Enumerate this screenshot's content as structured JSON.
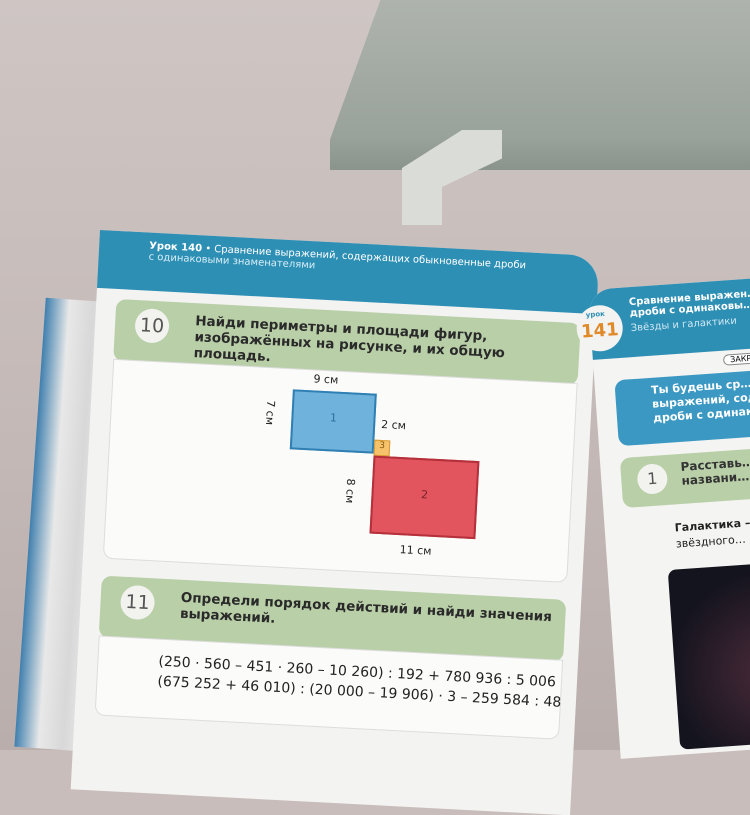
{
  "left_page": {
    "header": {
      "lesson": "Урок 140",
      "title": "• Сравнение выражений, содержащих обыкновенные дроби",
      "subtitle": "с одинаковыми знаменателями"
    },
    "exercise_10": {
      "number": "10",
      "text": "Найди периметры и площади фигур, изображённых на рисунке, и их общую площадь.",
      "figure": {
        "shape_1_label": "1",
        "shape_2_label": "2",
        "shape_3_label": "3",
        "width_1": "9 см",
        "height_1": "7 см",
        "side_3": "2 см",
        "height_2": "8 см",
        "width_2": "11 см",
        "colors": {
          "shape_1": "#6fb3dd",
          "shape_2": "#e2545e",
          "shape_3": "#f6c26b"
        }
      }
    },
    "exercise_11": {
      "number": "11",
      "text": "Определи порядок действий и найди значения выражений.",
      "expressions": [
        "(250 · 560 – 451 · 260 – 10 260) : 192 + 780 936 : 5 006",
        "(675 252 + 46 010) : (20 000 – 19 906) · 3 – 259 584 : 48"
      ]
    }
  },
  "right_page": {
    "badge_label": "урок",
    "badge_number": "141",
    "title": "Сравнение выражен… дроби с одинаковы…",
    "subtitle": "Звёзды и галактики",
    "tag": "ЗАКР…",
    "goal": "Ты будешь ср… выражений, соде… дроби с одинак…",
    "exercise_1": {
      "number": "1",
      "text": "Расставь… названи…"
    },
    "body_line_1": "Галактика –",
    "body_line_2": "звёздного…"
  }
}
